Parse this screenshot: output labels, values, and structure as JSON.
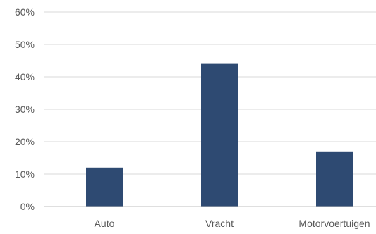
{
  "chart_data": {
    "type": "bar",
    "categories": [
      "Auto",
      "Vracht",
      "Motorvoertuigen"
    ],
    "values": [
      0.12,
      0.44,
      0.17
    ],
    "ylim": [
      0,
      0.6
    ],
    "y_ticks": [
      0,
      0.1,
      0.2,
      0.3,
      0.4,
      0.5,
      0.6
    ],
    "y_tick_labels": [
      "0%",
      "10%",
      "20%",
      "30%",
      "40%",
      "50%",
      "60%"
    ],
    "title": "",
    "xlabel": "",
    "ylabel": "",
    "grid": true,
    "legend": "none",
    "bar_color": "#2e4a72",
    "grid_color": "#d9d9d9",
    "axis_color": "#bfbfbf",
    "text_color": "#595959"
  }
}
